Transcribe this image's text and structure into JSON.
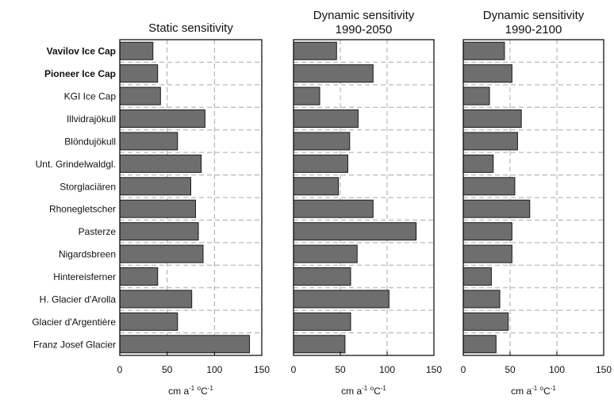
{
  "categories": [
    "Vavilov Ice Cap",
    "Pioneer Ice Cap",
    "KGI Ice Cap",
    "Illvidrajökull",
    "Blöndujökull",
    "Unt. Grindelwaldgl.",
    "Storglaciären",
    "Rhonegletscher",
    "Pasterze",
    "Nigardsbreen",
    "Hintereisferner",
    "H. Glacier d'Arolla",
    "Glacier d'Argentière",
    "Franz Josef Glacier"
  ],
  "bold_categories": [
    "Vavilov Ice Cap",
    "Pioneer Ice Cap"
  ],
  "colors": {
    "bar_fill": "#6e6e6e",
    "bar_stroke": "#1a1a1a",
    "grid": "#a8a8a8",
    "frame": "#000000"
  },
  "chart_data": [
    {
      "type": "bar",
      "orientation": "horizontal",
      "title": "Static sensitivity",
      "xlabel": {
        "base": "cm a",
        "sup1": "-1",
        "mid": " ",
        "sup2": "o",
        "tail": "C",
        "sup3": "-1"
      },
      "xlim": [
        0,
        150
      ],
      "xticks": [
        0,
        50,
        100,
        150
      ],
      "grid": true,
      "values": [
        35,
        40,
        43,
        90,
        61,
        86,
        75,
        80,
        83,
        88,
        40,
        76,
        61,
        137
      ]
    },
    {
      "type": "bar",
      "orientation": "horizontal",
      "title": "Dynamic sensitivity\n1990-2050",
      "xlabel": {
        "base": "cm a",
        "sup1": "-1",
        "mid": " ",
        "sup2": "o",
        "tail": "C",
        "sup3": "-1"
      },
      "xlim": [
        0,
        150
      ],
      "xticks": [
        0,
        50,
        100,
        150
      ],
      "grid": true,
      "values": [
        46,
        85,
        28,
        69,
        60,
        58,
        48,
        85,
        131,
        68,
        61,
        102,
        61,
        55
      ]
    },
    {
      "type": "bar",
      "orientation": "horizontal",
      "title": "Dynamic sensitivity\n1990-2100",
      "xlabel": {
        "base": "cm a",
        "sup1": "-1",
        "mid": " ",
        "sup2": "o",
        "tail": "C",
        "sup3": "-1"
      },
      "xlim": [
        0,
        150
      ],
      "xticks": [
        0,
        50,
        100,
        150
      ],
      "grid": true,
      "values": [
        44,
        52,
        28,
        62,
        58,
        32,
        55,
        71,
        52,
        52,
        30,
        39,
        48,
        35
      ]
    }
  ]
}
